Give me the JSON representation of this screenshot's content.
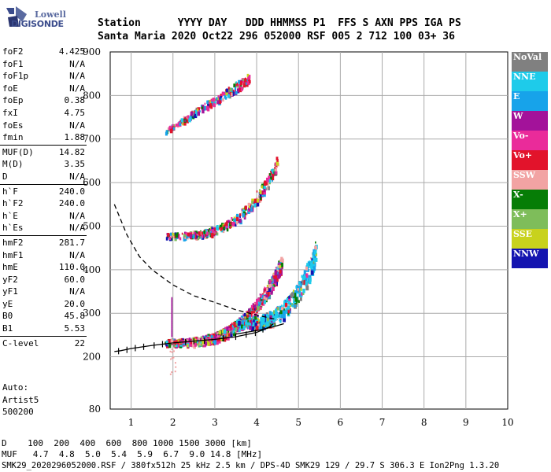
{
  "logo": {
    "line1": "Lowell",
    "line2": "DIGISONDE"
  },
  "header": {
    "line1": "Station      YYYY DAY   DDD HHMMSS P1  FFS S AXN PPS IGA PS",
    "line2": "Santa Maria 2020 Oct22 296 052000 RSF 005 2 712 100 03+ 36"
  },
  "params": [
    [
      {
        "label": "foF2",
        "value": "4.425"
      },
      {
        "label": "foF1",
        "value": "N/A"
      },
      {
        "label": "foF1p",
        "value": "N/A"
      },
      {
        "label": "foE",
        "value": "N/A"
      },
      {
        "label": "foEp",
        "value": "0.38"
      },
      {
        "label": "fxI",
        "value": "4.75"
      },
      {
        "label": "foEs",
        "value": "N/A"
      },
      {
        "label": "fmin",
        "value": "1.88"
      }
    ],
    [
      {
        "label": "MUF(D)",
        "value": "14.82"
      },
      {
        "label": "M(D)",
        "value": "3.35"
      },
      {
        "label": "D",
        "value": "N/A"
      }
    ],
    [
      {
        "label": "h`F",
        "value": "240.0"
      },
      {
        "label": "h`F2",
        "value": "240.0"
      },
      {
        "label": "h`E",
        "value": "N/A"
      },
      {
        "label": "h`Es",
        "value": "N/A"
      }
    ],
    [
      {
        "label": "hmF2",
        "value": "281.7"
      },
      {
        "label": "hmF1",
        "value": "N/A"
      },
      {
        "label": "hmE",
        "value": "110.0"
      },
      {
        "label": "yF2",
        "value": "60.0"
      },
      {
        "label": "yF1",
        "value": "N/A"
      },
      {
        "label": "yE",
        "value": "20.0"
      },
      {
        "label": "B0",
        "value": "45.8"
      },
      {
        "label": "B1",
        "value": "5.53"
      }
    ],
    [
      {
        "label": "C-level",
        "value": "22"
      }
    ]
  ],
  "auto": {
    "line1": "Auto:",
    "line2": "Artist5",
    "line3": "500200"
  },
  "tables": {
    "d_row": "D    100  200  400  600  800 1000 1500 3000 [km]",
    "muf_row": "MUF   4.7  4.8  5.0  5.4  5.9  6.7  9.0 14.8 [MHz]"
  },
  "footer": "SMK29_2020296052000.RSF / 380fx512h 25 kHz 2.5 km / DPS-4D SMK29 129 / 29.7 S 306.3 E Ion2Png 1.3.20",
  "legend": [
    {
      "label": "NoVal",
      "color": "#808080"
    },
    {
      "label": "NNE",
      "color": "#1ecbea"
    },
    {
      "label": "E",
      "color": "#17a3ea"
    },
    {
      "label": "W",
      "color": "#a3129a"
    },
    {
      "label": "Vo-",
      "color": "#ea2b9a"
    },
    {
      "label": "Vo+",
      "color": "#e2132b"
    },
    {
      "label": "SSW",
      "color": "#f2a3a3"
    },
    {
      "label": "X-",
      "color": "#067d06"
    },
    {
      "label": "X+",
      "color": "#7ebd5a"
    },
    {
      "label": "SSE",
      "color": "#c8d21d"
    },
    {
      "label": "NNW",
      "color": "#1414b0"
    }
  ],
  "chart_data": {
    "type": "scatter",
    "xlim": [
      0.5,
      10
    ],
    "ylim": [
      80,
      900
    ],
    "x_ticks": [
      1,
      2,
      3,
      4,
      5,
      6,
      7,
      8,
      9,
      10
    ],
    "y_ticks": [
      80,
      200,
      300,
      400,
      500,
      600,
      700,
      800,
      900
    ],
    "grid": true,
    "trace_clusters": [
      {
        "name": "F2 O-trace",
        "x_start": 1.8,
        "x_end": 4.6,
        "h_start": 235,
        "h_end": 420,
        "curve": "exponential"
      },
      {
        "name": "F2 X-trace",
        "x_start": 3.5,
        "x_end": 5.4,
        "h_start": 280,
        "h_end": 440,
        "curve": "exponential"
      },
      {
        "name": "second hop",
        "x_start": 1.8,
        "x_end": 4.5,
        "h_start": 480,
        "h_end": 650,
        "curve": "exponential"
      },
      {
        "name": "third hop",
        "x_start": 1.8,
        "x_end": 3.8,
        "h_start": 720,
        "h_end": 840,
        "curve": "linear"
      }
    ],
    "profile_curve": [
      [
        0.6,
        212
      ],
      [
        0.75,
        214
      ],
      [
        1.0,
        219
      ],
      [
        1.5,
        226
      ],
      [
        2.0,
        232
      ],
      [
        2.5,
        236
      ],
      [
        3.0,
        240
      ],
      [
        3.5,
        246
      ],
      [
        4.0,
        256
      ],
      [
        4.3,
        268
      ],
      [
        4.4,
        276
      ]
    ],
    "x_trace_curve": [
      [
        3.5,
        252
      ],
      [
        4.1,
        262
      ],
      [
        4.4,
        269
      ],
      [
        4.65,
        276
      ]
    ],
    "profile_ticks": [
      [
        0.7,
        213
      ],
      [
        0.9,
        216
      ],
      [
        1.1,
        220
      ],
      [
        1.3,
        223
      ],
      [
        1.55,
        226
      ],
      [
        1.75,
        229
      ],
      [
        2.3,
        234
      ],
      [
        2.5,
        236
      ],
      [
        2.75,
        237
      ],
      [
        3.2,
        243
      ],
      [
        3.5,
        246
      ],
      [
        3.75,
        251
      ],
      [
        3.97,
        255
      ],
      [
        4.15,
        263
      ]
    ],
    "muf_curve": [
      [
        0.6,
        550
      ],
      [
        0.9,
        480
      ],
      [
        1.2,
        430
      ],
      [
        1.5,
        400
      ],
      [
        2.0,
        365
      ],
      [
        2.5,
        340
      ],
      [
        3.0,
        325
      ],
      [
        3.5,
        308
      ],
      [
        4.0,
        296
      ],
      [
        4.5,
        285
      ]
    ]
  }
}
